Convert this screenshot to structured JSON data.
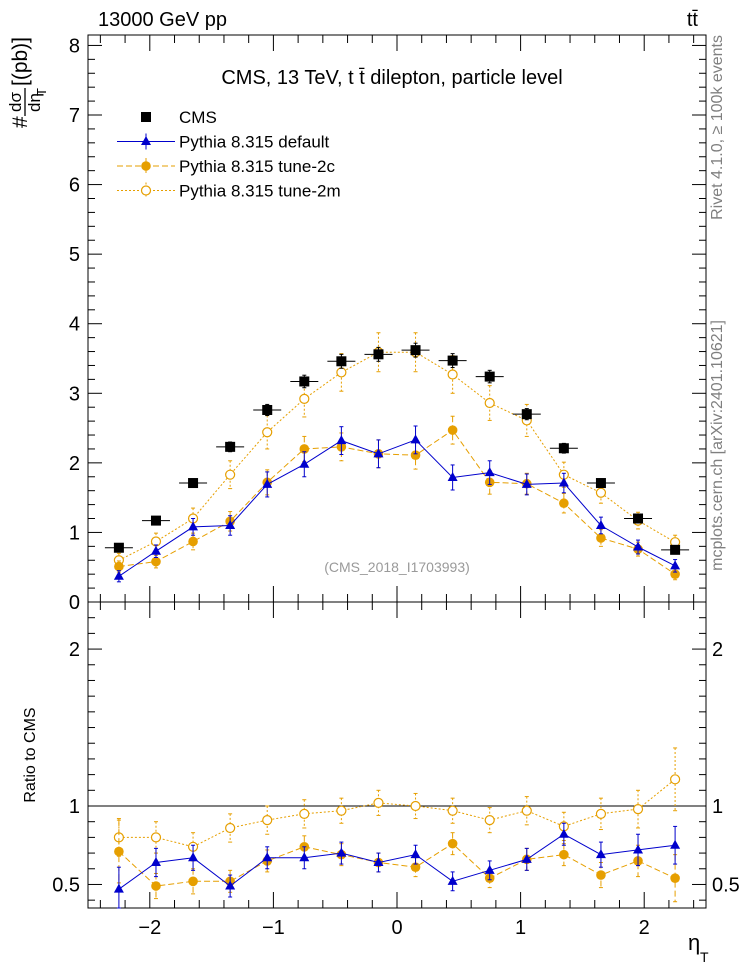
{
  "header": {
    "energy_label": "13000 GeV pp",
    "process_label": "tt̄",
    "side_label_top": "Rivet 4.1.0, ≥ 100k events",
    "side_label_bottom": "mcplots.cern.ch [arXiv:2401.10621]",
    "watermark": "(CMS_2018_I1703993)"
  },
  "chart_data": [
    {
      "type": "scatter",
      "panel": "main",
      "title": "CMS, 13 TeV, t t̄ dilepton, particle level",
      "ylabel": "#dσ/dη_T [(pb)]",
      "ylabel_parts": {
        "prefix": "#",
        "numerator": "dσ",
        "denominator": "dη",
        "subscript": "T",
        "unit": "[(pb)]"
      },
      "xlim": [
        -2.5,
        2.5
      ],
      "ylim": [
        0,
        8.15
      ],
      "yticks": [
        "0",
        "1",
        "2",
        "3",
        "4",
        "5",
        "6",
        "7",
        "8"
      ],
      "x": [
        -2.25,
        -1.95,
        -1.65,
        -1.35,
        -1.05,
        -0.75,
        -0.45,
        -0.15,
        0.15,
        0.45,
        0.75,
        1.05,
        1.35,
        1.65,
        1.95,
        2.25
      ],
      "series": [
        {
          "name": "CMS",
          "color": "#000000",
          "marker": "square",
          "values": [
            0.78,
            1.17,
            1.71,
            2.23,
            2.76,
            3.17,
            3.46,
            3.56,
            3.62,
            3.47,
            3.24,
            2.7,
            2.21,
            1.71,
            1.2,
            0.75
          ],
          "errors": [
            0.04,
            0.05,
            0.06,
            0.07,
            0.08,
            0.09,
            0.1,
            0.1,
            0.1,
            0.1,
            0.09,
            0.08,
            0.07,
            0.06,
            0.05,
            0.04
          ]
        },
        {
          "name": "Pythia 8.315 default",
          "color": "#0000cc",
          "marker": "triangle",
          "line": "solid",
          "values": [
            0.37,
            0.73,
            1.08,
            1.1,
            1.69,
            1.98,
            2.32,
            2.13,
            2.33,
            1.79,
            1.86,
            1.69,
            1.71,
            1.1,
            0.79,
            0.52
          ],
          "errors": [
            0.08,
            0.09,
            0.12,
            0.14,
            0.18,
            0.18,
            0.2,
            0.2,
            0.2,
            0.18,
            0.17,
            0.15,
            0.14,
            0.12,
            0.1,
            0.09
          ]
        },
        {
          "name": "Pythia 8.315 tune-2c",
          "color": "#e69f00",
          "marker": "circle",
          "line": "dashed",
          "values": [
            0.51,
            0.58,
            0.87,
            1.16,
            1.72,
            2.2,
            2.23,
            2.13,
            2.11,
            2.47,
            1.72,
            1.7,
            1.42,
            0.92,
            0.76,
            0.4
          ],
          "errors": [
            0.08,
            0.09,
            0.12,
            0.14,
            0.18,
            0.18,
            0.2,
            0.2,
            0.2,
            0.2,
            0.17,
            0.15,
            0.14,
            0.12,
            0.1,
            0.08
          ]
        },
        {
          "name": "Pythia 8.315 tune-2m",
          "color": "#e69f00",
          "marker": "open-circle",
          "line": "dotted",
          "values": [
            0.6,
            0.87,
            1.2,
            1.83,
            2.44,
            2.92,
            3.3,
            3.59,
            3.59,
            3.27,
            2.86,
            2.61,
            1.83,
            1.57,
            1.17,
            0.86
          ],
          "errors": [
            0.1,
            0.12,
            0.15,
            0.2,
            0.24,
            0.26,
            0.27,
            0.28,
            0.28,
            0.27,
            0.25,
            0.23,
            0.18,
            0.15,
            0.12,
            0.1
          ]
        }
      ]
    },
    {
      "type": "scatter",
      "panel": "ratio",
      "ylabel": "Ratio to CMS",
      "xlabel": "η_T",
      "xlabel_parts": {
        "symbol": "η",
        "subscript": "T"
      },
      "xlim": [
        -2.5,
        2.5
      ],
      "ylim": [
        0.35,
        2.3
      ],
      "xticks": [
        "−2",
        "−1",
        "0",
        "1",
        "2"
      ],
      "yticks": [
        "0.5",
        "1",
        "2"
      ],
      "reference_line": 1.0,
      "x": [
        -2.25,
        -1.95,
        -1.65,
        -1.35,
        -1.05,
        -0.75,
        -0.45,
        -0.15,
        0.15,
        0.45,
        0.75,
        1.05,
        1.35,
        1.65,
        1.95,
        2.25
      ],
      "series": [
        {
          "name": "Pythia 8.315 default",
          "color": "#0000cc",
          "marker": "triangle",
          "line": "solid",
          "values": [
            0.47,
            0.64,
            0.67,
            0.49,
            0.67,
            0.67,
            0.7,
            0.64,
            0.69,
            0.52,
            0.59,
            0.66,
            0.82,
            0.69,
            0.72,
            0.75
          ],
          "errors": [
            0.14,
            0.09,
            0.08,
            0.07,
            0.07,
            0.07,
            0.07,
            0.06,
            0.06,
            0.06,
            0.06,
            0.07,
            0.07,
            0.08,
            0.1,
            0.12
          ]
        },
        {
          "name": "Pythia 8.315 tune-2c",
          "color": "#e69f00",
          "marker": "circle",
          "line": "dashed",
          "values": [
            0.71,
            0.49,
            0.52,
            0.52,
            0.65,
            0.74,
            0.69,
            0.64,
            0.61,
            0.76,
            0.54,
            0.66,
            0.69,
            0.56,
            0.65,
            0.54
          ],
          "errors": [
            0.2,
            0.08,
            0.08,
            0.07,
            0.07,
            0.07,
            0.07,
            0.06,
            0.06,
            0.07,
            0.06,
            0.07,
            0.07,
            0.08,
            0.1,
            0.15
          ]
        },
        {
          "name": "Pythia 8.315 tune-2m",
          "color": "#e69f00",
          "marker": "open-circle",
          "line": "dotted",
          "values": [
            0.8,
            0.8,
            0.74,
            0.86,
            0.91,
            0.95,
            0.97,
            1.02,
            1.0,
            0.97,
            0.91,
            0.97,
            0.87,
            0.95,
            0.98,
            1.17
          ],
          "errors": [
            0.12,
            0.1,
            0.09,
            0.09,
            0.09,
            0.09,
            0.08,
            0.08,
            0.08,
            0.08,
            0.08,
            0.09,
            0.09,
            0.1,
            0.12,
            0.2
          ]
        }
      ]
    }
  ]
}
